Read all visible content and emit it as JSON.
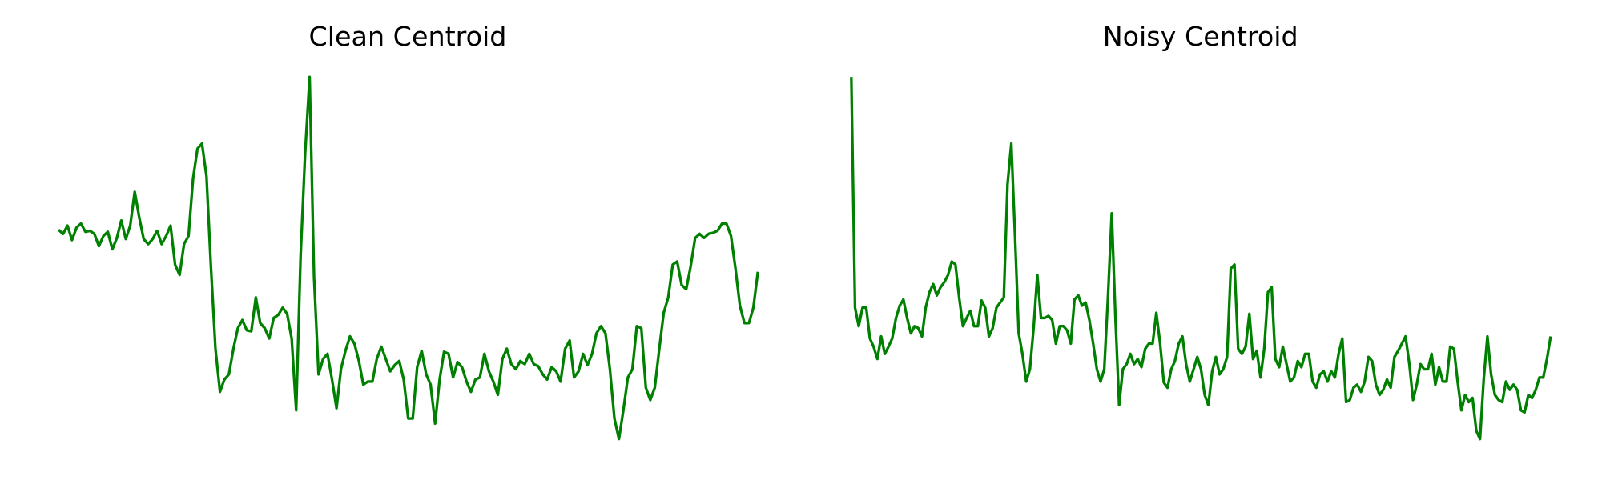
{
  "chart_data": [
    {
      "type": "line",
      "title": "Clean Centroid",
      "ylim": [
        0,
        440
      ],
      "color": "#008000",
      "values": [
        216,
        212,
        220,
        206,
        218,
        222,
        214,
        215,
        212,
        200,
        210,
        214,
        197,
        208,
        225,
        207,
        220,
        253,
        228,
        207,
        202,
        207,
        215,
        202,
        210,
        220,
        182,
        172,
        202,
        210,
        266,
        295,
        300,
        268,
        180,
        100,
        58,
        70,
        75,
        100,
        120,
        128,
        118,
        117,
        150,
        125,
        120,
        110,
        130,
        133,
        140,
        134,
        110,
        40,
        190,
        290,
        365,
        170,
        75,
        90,
        95,
        70,
        42,
        80,
        98,
        112,
        105,
        88,
        65,
        68,
        68,
        90,
        102,
        90,
        78,
        84,
        88,
        70,
        32,
        32,
        82,
        98,
        75,
        65,
        27,
        70,
        97,
        95,
        72,
        87,
        82,
        68,
        58,
        70,
        72,
        95,
        78,
        68,
        55,
        90,
        100,
        85,
        80,
        88,
        85,
        95,
        85,
        83,
        75,
        70,
        82,
        78,
        68,
        100,
        108,
        72,
        78,
        95,
        84,
        95,
        115,
        122,
        115,
        80,
        32,
        12,
        40,
        72,
        80,
        122,
        120,
        62,
        50,
        62,
        100,
        135,
        150,
        182,
        185,
        162,
        158,
        180,
        208,
        212,
        208,
        212,
        213,
        215,
        222,
        222,
        210,
        178,
        142,
        125,
        125,
        140,
        175
      ]
    },
    {
      "type": "line",
      "title": "Noisy Centroid",
      "ylim": [
        0,
        440
      ],
      "color": "#008000",
      "values": [
        365,
        140,
        122,
        140,
        140,
        110,
        102,
        90,
        112,
        95,
        102,
        110,
        130,
        142,
        148,
        130,
        115,
        122,
        120,
        112,
        140,
        155,
        163,
        152,
        160,
        165,
        172,
        185,
        182,
        150,
        122,
        130,
        137,
        122,
        122,
        147,
        140,
        112,
        120,
        140,
        145,
        150,
        260,
        300,
        210,
        115,
        95,
        68,
        80,
        120,
        172,
        130,
        130,
        132,
        128,
        105,
        122,
        122,
        118,
        105,
        148,
        152,
        142,
        145,
        128,
        105,
        80,
        68,
        80,
        150,
        232,
        130,
        45,
        80,
        85,
        95,
        85,
        90,
        82,
        100,
        105,
        105,
        135,
        105,
        67,
        62,
        80,
        88,
        105,
        112,
        85,
        68,
        80,
        92,
        80,
        55,
        45,
        78,
        92,
        75,
        80,
        92,
        178,
        182,
        100,
        95,
        102,
        134,
        90,
        98,
        72,
        100,
        155,
        160,
        90,
        82,
        102,
        85,
        68,
        72,
        88,
        82,
        95,
        95,
        68,
        62,
        75,
        78,
        68,
        78,
        72,
        95,
        110,
        48,
        50,
        62,
        65,
        58,
        68,
        92,
        88,
        65,
        55,
        60,
        70,
        62,
        92,
        98,
        105,
        112,
        85,
        50,
        65,
        85,
        80,
        80,
        95,
        65,
        82,
        68,
        68,
        102,
        100,
        68,
        40,
        55,
        48,
        52,
        20,
        12,
        70,
        112,
        75,
        55,
        50,
        48,
        68,
        60,
        65,
        60,
        40,
        38,
        55,
        52,
        60,
        72,
        72,
        90,
        112
      ]
    }
  ]
}
